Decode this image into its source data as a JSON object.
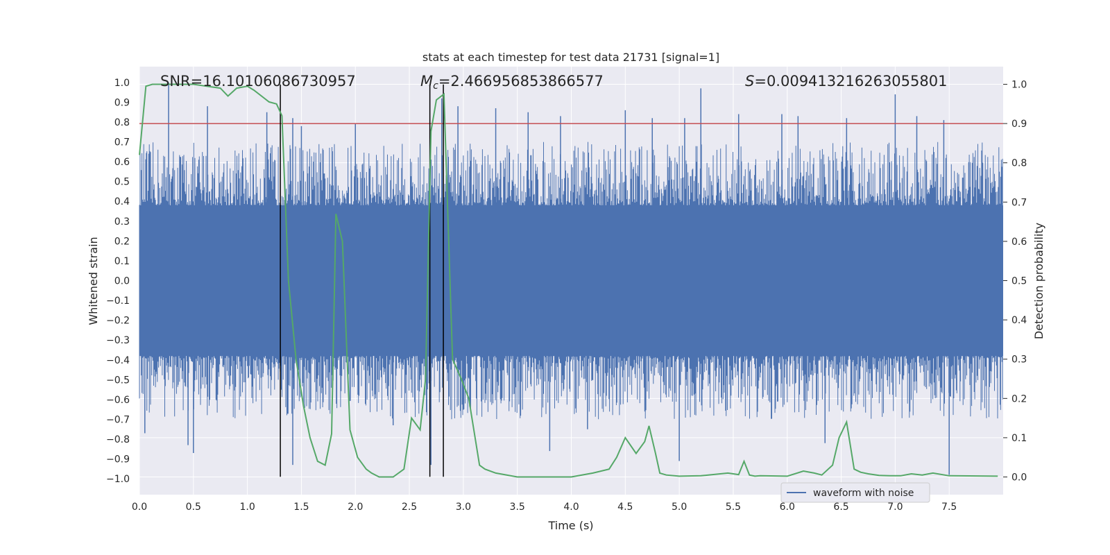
{
  "chart_data": {
    "type": "line",
    "title": "stats at each timestep for test data 21731 [signal=1]",
    "xlabel": "Time (s)",
    "ylabel": "Whitened strain",
    "y2label": "Detection probability",
    "xlim": [
      0.0,
      8.0
    ],
    "ylim": [
      -1.08,
      1.08
    ],
    "y2lim": [
      -0.045,
      1.045
    ],
    "x_ticks": [
      0.0,
      0.5,
      1.0,
      1.5,
      2.0,
      2.5,
      3.0,
      3.5,
      4.0,
      4.5,
      5.0,
      5.5,
      6.0,
      6.5,
      7.0,
      7.5
    ],
    "y_ticks": [
      -1.0,
      -0.9,
      -0.8,
      -0.7,
      -0.6,
      -0.5,
      -0.4,
      -0.3,
      -0.2,
      -0.1,
      0.0,
      0.1,
      0.2,
      0.3,
      0.4,
      0.5,
      0.6,
      0.7,
      0.8,
      0.9,
      1.0
    ],
    "y2_ticks": [
      0.0,
      0.1,
      0.2,
      0.3,
      0.4,
      0.5,
      0.6,
      0.7,
      0.8,
      0.9,
      1.0
    ],
    "annotations": {
      "snr": "SNR=16.10106086730957",
      "mc_symbol": "M",
      "mc_sub": "c",
      "mc_value": "=2.466956853866577",
      "s_symbol": "S",
      "s_value": "=0.009413216263055801"
    },
    "threshold": {
      "value": 0.9,
      "axis": "y2",
      "color": "#c44e52"
    },
    "vlines": [
      1.305,
      2.69,
      2.815
    ],
    "vline_ymin": -0.99,
    "vline_ymax": 0.99,
    "legend": {
      "label": "waveform with noise",
      "placement": "lower-right"
    },
    "series": [
      {
        "name": "waveform with noise",
        "axis": "y",
        "color": "#4c72b0",
        "type": "noise-band",
        "band_upper_typical": 0.38,
        "band_lower_typical": -0.38,
        "spikes_up": [
          [
            0.27,
            1.0
          ],
          [
            0.63,
            0.88
          ],
          [
            1.18,
            0.85
          ],
          [
            1.42,
            0.82
          ],
          [
            1.5,
            0.78
          ],
          [
            2.0,
            0.79
          ],
          [
            2.8,
            0.92
          ],
          [
            2.95,
            0.88
          ],
          [
            3.3,
            0.87
          ],
          [
            3.6,
            0.85
          ],
          [
            3.9,
            0.83
          ],
          [
            4.5,
            0.86
          ],
          [
            4.75,
            0.82
          ],
          [
            5.05,
            0.82
          ],
          [
            5.2,
            0.97
          ],
          [
            5.55,
            0.84
          ],
          [
            5.95,
            0.84
          ],
          [
            6.1,
            0.83
          ],
          [
            6.55,
            0.82
          ],
          [
            7.0,
            0.94
          ],
          [
            7.2,
            0.83
          ],
          [
            7.45,
            0.81
          ]
        ],
        "spikes_down": [
          [
            0.05,
            -0.77
          ],
          [
            0.45,
            -0.83
          ],
          [
            0.5,
            -0.87
          ],
          [
            1.42,
            -0.93
          ],
          [
            2.35,
            -0.73
          ],
          [
            2.7,
            -0.93
          ],
          [
            3.8,
            -0.86
          ],
          [
            4.15,
            -0.75
          ],
          [
            5.0,
            -0.91
          ],
          [
            6.35,
            -0.82
          ],
          [
            7.5,
            -0.98
          ]
        ]
      },
      {
        "name": "detection probability",
        "axis": "y2",
        "color": "#55a868",
        "x": [
          0.0,
          0.06,
          0.12,
          0.3,
          0.5,
          0.75,
          0.82,
          0.9,
          1.0,
          1.06,
          1.2,
          1.27,
          1.32,
          1.38,
          1.45,
          1.52,
          1.58,
          1.65,
          1.72,
          1.78,
          1.82,
          1.88,
          1.95,
          2.02,
          2.1,
          2.15,
          2.22,
          2.35,
          2.45,
          2.52,
          2.6,
          2.65,
          2.7,
          2.75,
          2.82,
          2.9,
          2.98,
          3.05,
          3.15,
          3.2,
          3.3,
          3.5,
          4.0,
          4.2,
          4.35,
          4.42,
          4.5,
          4.6,
          4.68,
          4.72,
          4.78,
          4.82,
          4.88,
          5.0,
          5.2,
          5.45,
          5.55,
          5.6,
          5.65,
          5.7,
          5.75,
          6.0,
          6.15,
          6.25,
          6.32,
          6.42,
          6.48,
          6.55,
          6.62,
          6.68,
          6.75,
          6.85,
          6.95,
          7.05,
          7.15,
          7.25,
          7.35,
          7.5,
          7.95
        ],
        "y": [
          0.82,
          0.995,
          1.0,
          1.0,
          1.0,
          0.99,
          0.97,
          0.99,
          0.995,
          0.985,
          0.955,
          0.95,
          0.92,
          0.5,
          0.3,
          0.18,
          0.1,
          0.04,
          0.03,
          0.11,
          0.67,
          0.6,
          0.12,
          0.05,
          0.02,
          0.01,
          0.0,
          0.0,
          0.02,
          0.15,
          0.12,
          0.25,
          0.88,
          0.96,
          0.975,
          0.3,
          0.25,
          0.2,
          0.03,
          0.02,
          0.01,
          0.0,
          0.0,
          0.01,
          0.02,
          0.05,
          0.1,
          0.06,
          0.09,
          0.13,
          0.06,
          0.01,
          0.005,
          0.002,
          0.003,
          0.01,
          0.006,
          0.04,
          0.005,
          0.002,
          0.003,
          0.002,
          0.015,
          0.01,
          0.005,
          0.03,
          0.1,
          0.14,
          0.02,
          0.012,
          0.008,
          0.004,
          0.003,
          0.003,
          0.008,
          0.005,
          0.01,
          0.003,
          0.002
        ]
      }
    ]
  }
}
